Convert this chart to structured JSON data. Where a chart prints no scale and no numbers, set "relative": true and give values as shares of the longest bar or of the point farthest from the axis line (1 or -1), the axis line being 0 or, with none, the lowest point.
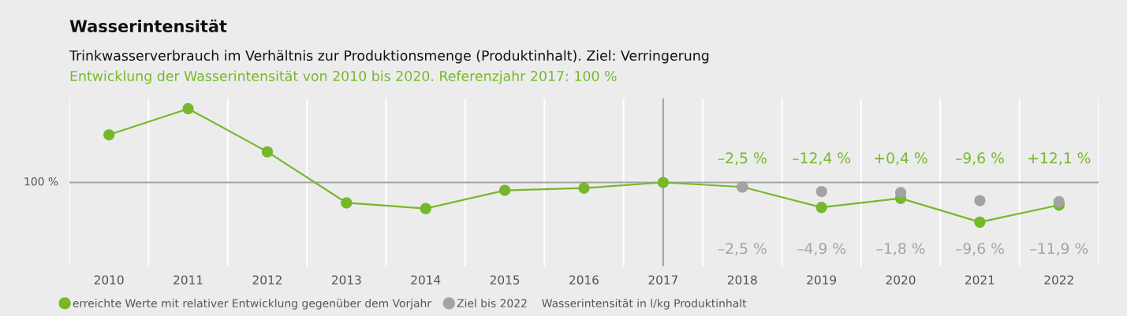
{
  "chart_data": {
    "type": "line",
    "title": "Wasserintensität",
    "subtitle": "Trinkwasserverbrauch im Verhältnis zur Produktionsmenge (Produktinhalt). Ziel: Verringerung",
    "annotations": [
      "Entwicklung der Wasserintensität von 2010 bis 2020. Referenzjahr 2017: 100 %",
      "100 %",
      "–2,5 %",
      "–12,4 %",
      "+0,4 %",
      "–9,6 %",
      "+12,1 %",
      "–2,5 %",
      "–4,9 %",
      "–1,8 %",
      "–9,6 %",
      "–11,9 %",
      "Wasserintensität in l/kg Produktinhalt"
    ],
    "categories": [
      "2010",
      "2011",
      "2012",
      "2013",
      "2014",
      "2015",
      "2016",
      "2017",
      "2018",
      "2019",
      "2020",
      "2021",
      "2022"
    ],
    "series": [
      {
        "name": "erreichte Werte mit relativer Entwicklung gegenüber dem Vorjahr",
        "color": "#76b82a",
        "values": [
          0.77,
          1,
          0.62,
          0.17,
          0.12,
          0.28,
          0.3,
          0.35,
          0.31,
          0.13,
          0.21,
          0,
          0.15
        ]
      },
      {
        "name": "Ziel bis 2022",
        "type": "scatter",
        "color": "#a3a3a3",
        "values": [
          null,
          null,
          null,
          null,
          null,
          null,
          null,
          null,
          0.31,
          0.27,
          0.26,
          0.19,
          0.18
        ]
      }
    ],
    "relative": true,
    "ref_lines": [
      {
        "axis": "y",
        "value": 0.35,
        "color": "#a3a3a3"
      },
      {
        "axis": "x",
        "value": "2017",
        "color": "#a3a3a3"
      }
    ],
    "grid": "x",
    "legend": "bottom",
    "marker": "circle",
    "line_style": "solid"
  }
}
